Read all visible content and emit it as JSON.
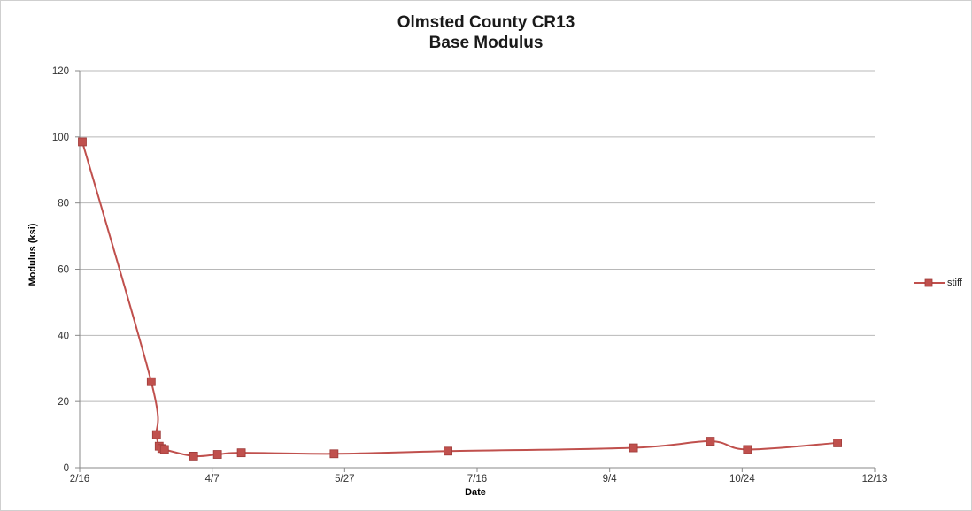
{
  "chart_data": {
    "type": "line",
    "title": [
      "Olmsted County CR13",
      "Base Modulus"
    ],
    "xlabel": "Date",
    "ylabel": "Modulus (ksi)",
    "ylim": [
      0,
      120
    ],
    "yticks": [
      0,
      20,
      40,
      60,
      80,
      100,
      120
    ],
    "xlim": [
      "2/16",
      "12/13"
    ],
    "xticks": [
      "2/16",
      "4/7",
      "5/27",
      "7/16",
      "9/4",
      "10/24",
      "12/13"
    ],
    "grid": "horizontal",
    "legend_position": "right",
    "series": [
      {
        "name": "stiff",
        "color": "#c0504d",
        "marker": "square",
        "points": [
          {
            "x": "2/17",
            "y": 98.5
          },
          {
            "x": "3/15",
            "y": 26.0
          },
          {
            "x": "3/17",
            "y": 10.0
          },
          {
            "x": "3/18",
            "y": 6.5
          },
          {
            "x": "3/19",
            "y": 5.8
          },
          {
            "x": "3/20",
            "y": 5.5
          },
          {
            "x": "3/31",
            "y": 3.5
          },
          {
            "x": "4/9",
            "y": 4.0
          },
          {
            "x": "4/18",
            "y": 4.5
          },
          {
            "x": "5/23",
            "y": 4.2
          },
          {
            "x": "7/5",
            "y": 5.0
          },
          {
            "x": "9/13",
            "y": 6.0
          },
          {
            "x": "10/12",
            "y": 8.0
          },
          {
            "x": "10/26",
            "y": 5.5
          },
          {
            "x": "11/29",
            "y": 7.5
          }
        ]
      }
    ]
  }
}
